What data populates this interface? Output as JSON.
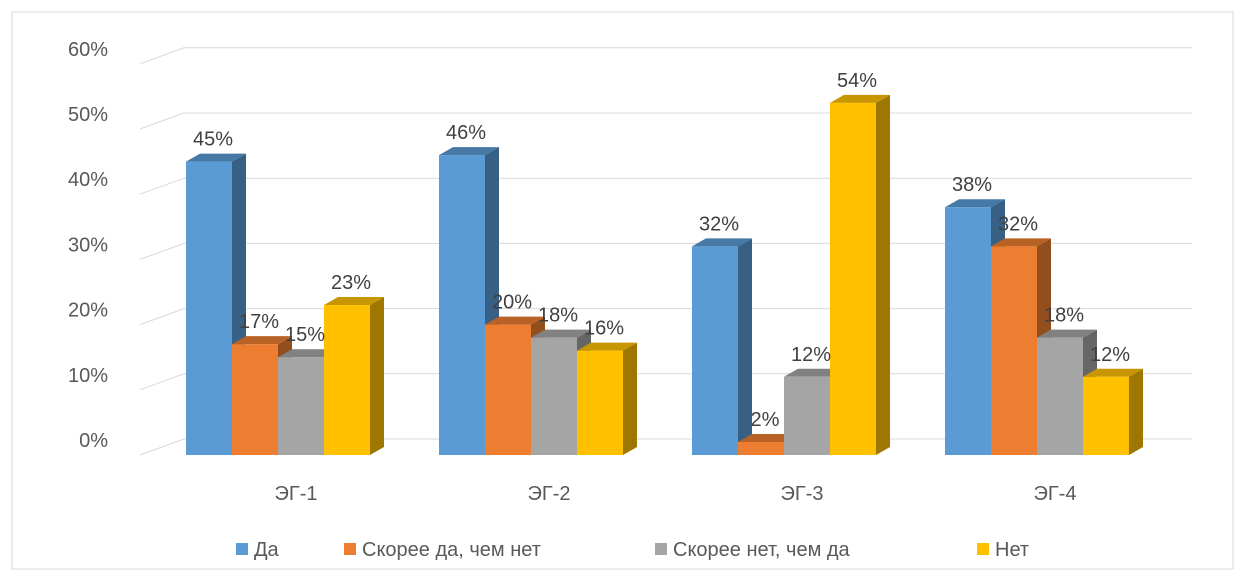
{
  "chart_data": {
    "type": "bar",
    "categories": [
      "ЭГ-1",
      "ЭГ-2",
      "ЭГ-3",
      "ЭГ-4"
    ],
    "series": [
      {
        "name": "Да",
        "values": [
          45,
          46,
          32,
          38
        ],
        "color": "#5B9BD5"
      },
      {
        "name": "Скорее да, чем нет",
        "values": [
          17,
          20,
          2,
          32
        ],
        "color": "#ED7D31"
      },
      {
        "name": "Скорее нет, чем да",
        "values": [
          15,
          18,
          12,
          18
        ],
        "color": "#A5A5A5"
      },
      {
        "name": "Нет",
        "values": [
          23,
          16,
          54,
          12
        ],
        "color": "#FFC000"
      }
    ],
    "data_labels": [
      [
        "45%",
        "46%",
        "32%",
        "38%"
      ],
      [
        "17%",
        "20%",
        "2%",
        "32%"
      ],
      [
        "15%",
        "18%",
        "12%",
        "18%"
      ],
      [
        "23%",
        "16%",
        "54%",
        "12%"
      ]
    ],
    "y_ticks": [
      0,
      10,
      20,
      30,
      40,
      50,
      60
    ],
    "y_tick_labels": [
      "0%",
      "10%",
      "20%",
      "30%",
      "40%",
      "50%",
      "60%"
    ],
    "ylim": [
      0,
      60
    ],
    "grid": true,
    "legend_position": "bottom",
    "style": "3d-clustered-column"
  }
}
